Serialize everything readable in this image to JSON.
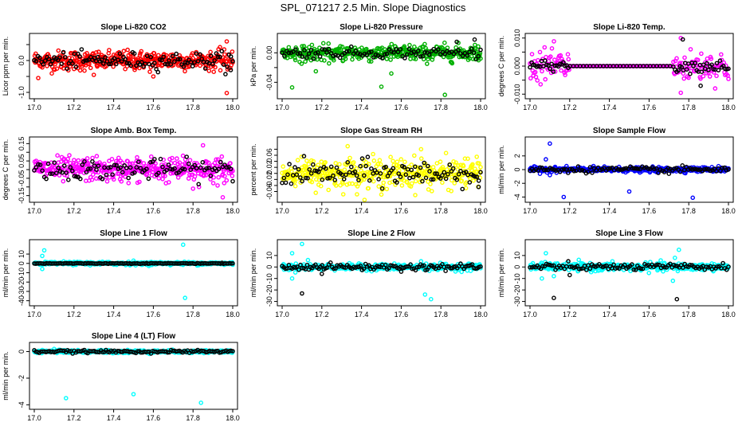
{
  "figure": {
    "title": "SPL_071217  2.5 Min. Slope Diagnostics"
  },
  "chart_data": [
    {
      "type": "scatter",
      "title": "Slope Li-820 CO2",
      "xlabel": "",
      "ylabel": "Licor ppm per min.",
      "xlim": [
        17.0,
        18.0
      ],
      "ylim": [
        -1.1,
        0.75
      ],
      "xticks": [
        17.0,
        17.2,
        17.4,
        17.6,
        17.8,
        18.0
      ],
      "xtick_labels": [
        "17.0",
        "17.2",
        "17.4",
        "17.6",
        "17.8",
        "18.0"
      ],
      "yticks": [
        -1.0,
        -0.5,
        0.0,
        0.5
      ],
      "ytick_labels": [
        "-1.0",
        "",
        "0.0",
        ""
      ],
      "series": [
        {
          "name": "primary",
          "color": "#ff0000",
          "count": 420,
          "spread": 0.22,
          "outliers": [
            [
              17.02,
              -0.55
            ],
            [
              17.3,
              -0.45
            ],
            [
              17.6,
              -0.5
            ],
            [
              17.97,
              -1.02
            ],
            [
              17.97,
              0.6
            ]
          ],
          "center_spread": 0.22
        },
        {
          "name": "black",
          "color": "#000000",
          "count": 110,
          "spread": 0.18,
          "outliers": [
            [
              17.99,
              -0.3
            ]
          ]
        }
      ]
    },
    {
      "type": "scatter",
      "title": "Slope Li-820 Pressure",
      "xlabel": "",
      "ylabel": "kPa per min.",
      "xlim": [
        17.0,
        18.0
      ],
      "ylim": [
        -0.058,
        0.022
      ],
      "xticks": [
        17.0,
        17.2,
        17.4,
        17.6,
        17.8,
        18.0
      ],
      "xtick_labels": [
        "17.0",
        "17.2",
        "17.4",
        "17.6",
        "17.8",
        "18.0"
      ],
      "yticks": [
        -0.04,
        -0.02,
        0.0
      ],
      "ytick_labels": [
        "-0.04",
        "",
        "0.00"
      ],
      "series": [
        {
          "name": "primary",
          "color": "#00b000",
          "count": 420,
          "spread": 0.008,
          "outliers": [
            [
              17.05,
              -0.047
            ],
            [
              17.17,
              -0.025
            ],
            [
              17.5,
              -0.046
            ],
            [
              17.55,
              -0.028
            ],
            [
              17.82,
              -0.057
            ],
            [
              17.99,
              -0.01
            ]
          ]
        },
        {
          "name": "black",
          "color": "#000000",
          "count": 90,
          "spread": 0.005,
          "outliers": [
            [
              17.97,
              0.018
            ],
            [
              17.88,
              0.015
            ]
          ]
        }
      ]
    },
    {
      "type": "scatter",
      "title": "Slope Li-820 Temp.",
      "xlabel": "",
      "ylabel": "degrees C per min.",
      "xlim": [
        17.0,
        18.0
      ],
      "ylim": [
        -0.0105,
        0.0105
      ],
      "xticks": [
        17.0,
        17.2,
        17.4,
        17.6,
        17.8,
        18.0
      ],
      "xtick_labels": [
        "17.0",
        "17.2",
        "17.4",
        "17.6",
        "17.8",
        "18.0"
      ],
      "yticks": [
        -0.01,
        -0.005,
        0.0,
        0.005,
        0.01
      ],
      "ytick_labels": [
        "-0.010",
        "",
        "0.000",
        "",
        "0.010"
      ],
      "series": [
        {
          "name": "primary",
          "color": "#ff00ff",
          "count": 300,
          "spread": 0.004,
          "quiet_range": [
            17.2,
            17.72
          ],
          "outliers": [
            [
              17.76,
              0.01
            ],
            [
              17.76,
              -0.0095
            ],
            [
              17.05,
              0.005
            ]
          ]
        },
        {
          "name": "black",
          "color": "#000000",
          "count": 120,
          "spread": 0.0015,
          "quiet_range": [
            17.2,
            17.72
          ],
          "outliers": [
            [
              17.77,
              0.0095
            ],
            [
              17.86,
              -0.007
            ]
          ]
        }
      ]
    },
    {
      "type": "scatter",
      "title": "Slope Amb. Box Temp.",
      "xlabel": "",
      "ylabel": "degrees C per min.",
      "xlim": [
        17.0,
        18.0
      ],
      "ylim": [
        -0.17,
        0.17
      ],
      "xticks": [
        17.0,
        17.2,
        17.4,
        17.6,
        17.8,
        18.0
      ],
      "xtick_labels": [
        "17.0",
        "17.2",
        "17.4",
        "17.6",
        "17.8",
        "18.0"
      ],
      "yticks": [
        -0.15,
        -0.1,
        -0.05,
        0.0,
        0.05,
        0.1,
        0.15
      ],
      "ytick_labels": [
        "-0.15",
        "",
        "-0.05",
        "",
        "0.05",
        "",
        "0.15"
      ],
      "series": [
        {
          "name": "primary",
          "color": "#ff00ff",
          "count": 420,
          "spread": 0.05,
          "outliers": [
            [
              17.8,
              -0.11
            ],
            [
              17.85,
              0.14
            ],
            [
              17.95,
              -0.16
            ],
            [
              17.83,
              -0.1
            ]
          ]
        },
        {
          "name": "black",
          "color": "#000000",
          "count": 100,
          "spread": 0.04,
          "outliers": []
        }
      ]
    },
    {
      "type": "scatter",
      "title": "Slope Gas Stream RH",
      "xlabel": "",
      "ylabel": "percent per min.",
      "xlim": [
        17.0,
        18.0
      ],
      "ylim": [
        -0.085,
        0.11
      ],
      "xticks": [
        17.0,
        17.2,
        17.4,
        17.6,
        17.8,
        18.0
      ],
      "xtick_labels": [
        "17.0",
        "17.2",
        "17.4",
        "17.6",
        "17.8",
        "18.0"
      ],
      "yticks": [
        -0.06,
        -0.04,
        -0.02,
        0.0,
        0.02,
        0.04,
        0.06,
        0.08
      ],
      "ytick_labels": [
        "-0.06",
        "",
        "-0.02",
        "",
        "0.02",
        "",
        "0.06",
        ""
      ],
      "series": [
        {
          "name": "primary",
          "color": "#ffff00",
          "count": 420,
          "spread": 0.035,
          "outliers": [
            [
              17.33,
              0.09
            ],
            [
              17.7,
              0.08
            ],
            [
              17.5,
              -0.07
            ]
          ]
        },
        {
          "name": "black",
          "color": "#000000",
          "count": 110,
          "spread": 0.03,
          "outliers": [
            [
              17.99,
              -0.045
            ]
          ]
        }
      ]
    },
    {
      "type": "scatter",
      "title": "Slope Sample Flow",
      "xlabel": "",
      "ylabel": "ml/min per min.",
      "xlim": [
        17.0,
        18.0
      ],
      "ylim": [
        -4.3,
        4.3
      ],
      "xticks": [
        17.0,
        17.2,
        17.4,
        17.6,
        17.8,
        18.0
      ],
      "xtick_labels": [
        "17.0",
        "17.2",
        "17.4",
        "17.6",
        "17.8",
        "18.0"
      ],
      "yticks": [
        -4,
        -2,
        0,
        2
      ],
      "ytick_labels": [
        "-4",
        "-2",
        "0",
        "2"
      ],
      "series": [
        {
          "name": "primary",
          "color": "#0000ff",
          "count": 420,
          "spread": 0.25,
          "outliers": [
            [
              17.08,
              1.5
            ],
            [
              17.1,
              3.8
            ],
            [
              17.1,
              -0.8
            ],
            [
              17.05,
              -0.6
            ],
            [
              17.17,
              -4.0
            ],
            [
              17.5,
              -3.2
            ],
            [
              17.82,
              -4.1
            ],
            [
              17.95,
              0.5
            ]
          ]
        },
        {
          "name": "black",
          "color": "#000000",
          "count": 100,
          "spread": 0.3,
          "outliers": [
            [
              17.7,
              -0.6
            ]
          ]
        }
      ]
    },
    {
      "type": "scatter",
      "title": "Slope Line 1 Flow",
      "xlabel": "",
      "ylabel": "ml/min per min.",
      "xlim": [
        17.0,
        18.0
      ],
      "ylim": [
        -42,
        22
      ],
      "xticks": [
        17.0,
        17.2,
        17.4,
        17.6,
        17.8,
        18.0
      ],
      "xtick_labels": [
        "17.0",
        "17.2",
        "17.4",
        "17.6",
        "17.8",
        "18.0"
      ],
      "yticks": [
        -40,
        -30,
        -20,
        -10,
        0,
        10
      ],
      "ytick_labels": [
        "-40",
        "-30",
        "-20",
        "-10",
        "0",
        "10"
      ],
      "series": [
        {
          "name": "primary",
          "color": "#00ffff",
          "count": 420,
          "spread": 1.2,
          "outliers": [
            [
              17.05,
              14
            ],
            [
              17.04,
              8
            ],
            [
              17.04,
              -6
            ],
            [
              17.75,
              20
            ],
            [
              17.76,
              -37
            ],
            [
              17.5,
              3
            ]
          ]
        },
        {
          "name": "black",
          "color": "#000000",
          "count": 130,
          "spread": 0.3,
          "outliers": []
        }
      ]
    },
    {
      "type": "scatter",
      "title": "Slope Line 2 Flow",
      "xlabel": "",
      "ylabel": "ml/min per min.",
      "xlim": [
        17.0,
        18.0
      ],
      "ylim": [
        -31,
        21
      ],
      "xticks": [
        17.0,
        17.2,
        17.4,
        17.6,
        17.8,
        18.0
      ],
      "xtick_labels": [
        "17.0",
        "17.2",
        "17.4",
        "17.6",
        "17.8",
        "18.0"
      ],
      "yticks": [
        -30,
        -20,
        -10,
        0,
        10
      ],
      "ytick_labels": [
        "-30",
        "-20",
        "-10",
        "0",
        "10"
      ],
      "series": [
        {
          "name": "primary",
          "color": "#00ffff",
          "count": 420,
          "spread": 2.0,
          "outliers": [
            [
              17.05,
              12
            ],
            [
              17.1,
              20
            ],
            [
              17.05,
              -10
            ],
            [
              17.7,
              5
            ],
            [
              17.75,
              -28
            ],
            [
              17.72,
              -24
            ],
            [
              17.13,
              6
            ]
          ]
        },
        {
          "name": "black",
          "color": "#000000",
          "count": 120,
          "spread": 2.0,
          "outliers": [
            [
              17.1,
              -23
            ],
            [
              17.2,
              -6
            ],
            [
              17.6,
              -4
            ]
          ]
        }
      ]
    },
    {
      "type": "scatter",
      "title": "Slope Line 3 Flow",
      "xlabel": "",
      "ylabel": "ml/min per min.",
      "xlim": [
        17.0,
        18.0
      ],
      "ylim": [
        -31,
        21
      ],
      "xticks": [
        17.0,
        17.2,
        17.4,
        17.6,
        17.8,
        18.0
      ],
      "xtick_labels": [
        "17.0",
        "17.2",
        "17.4",
        "17.6",
        "17.8",
        "18.0"
      ],
      "yticks": [
        -30,
        -20,
        -10,
        0,
        10
      ],
      "ytick_labels": [
        "-30",
        "-20",
        "-10",
        "0",
        "10"
      ],
      "series": [
        {
          "name": "primary",
          "color": "#00ffff",
          "count": 420,
          "spread": 2.5,
          "outliers": [
            [
              17.08,
              12
            ],
            [
              17.06,
              -10
            ],
            [
              17.12,
              -8
            ],
            [
              17.75,
              15
            ],
            [
              17.72,
              -12
            ],
            [
              17.73,
              8
            ]
          ]
        },
        {
          "name": "black",
          "color": "#000000",
          "count": 110,
          "spread": 2.0,
          "outliers": [
            [
              17.12,
              -27
            ],
            [
              17.74,
              -28
            ],
            [
              17.2,
              -7
            ]
          ]
        }
      ]
    },
    {
      "type": "scatter",
      "title": "Slope Line 4 (LT) Flow",
      "xlabel": "",
      "ylabel": "ml/min per min.",
      "xlim": [
        17.0,
        18.0
      ],
      "ylim": [
        -4.1,
        0.45
      ],
      "xticks": [
        17.0,
        17.2,
        17.4,
        17.6,
        17.8,
        18.0
      ],
      "xtick_labels": [
        "17.0",
        "17.2",
        "17.4",
        "17.6",
        "17.8",
        "18.0"
      ],
      "yticks": [
        -4,
        -2,
        0
      ],
      "ytick_labels": [
        "-4",
        "-2",
        "0"
      ],
      "series": [
        {
          "name": "primary",
          "color": "#00ffff",
          "count": 420,
          "spread": 0.08,
          "outliers": [
            [
              17.16,
              -3.5
            ],
            [
              17.5,
              -3.2
            ],
            [
              17.84,
              -3.85
            ],
            [
              17.1,
              0.2
            ]
          ]
        },
        {
          "name": "black",
          "color": "#000000",
          "count": 120,
          "spread": 0.07,
          "outliers": []
        }
      ]
    }
  ]
}
